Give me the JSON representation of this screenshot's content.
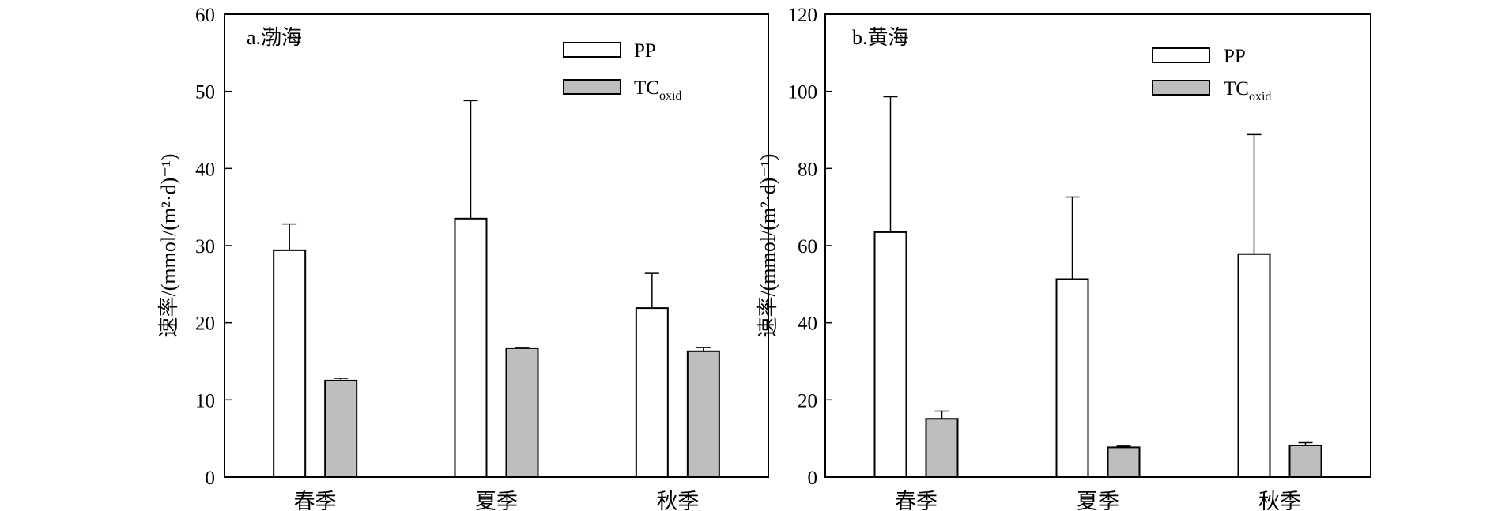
{
  "chart_data": [
    {
      "type": "bar",
      "title": "a.渤海",
      "ylabel": "速率/(mmol/(m²·d)⁻¹)",
      "ylim": [
        0,
        60
      ],
      "yticks": [
        0,
        10,
        20,
        30,
        40,
        50,
        60
      ],
      "categories": [
        "春季",
        "夏季",
        "秋季"
      ],
      "legend_position": "top-right",
      "series": [
        {
          "name": "PP",
          "name_base": "PP",
          "name_sub": "",
          "color": "#ffffff",
          "values": [
            29.4,
            33.5,
            21.9
          ],
          "error_upper": [
            32.8,
            48.8,
            26.4
          ]
        },
        {
          "name": "TCoxid",
          "name_base": "TC",
          "name_sub": "oxid",
          "color": "#bebebe",
          "values": [
            12.5,
            16.7,
            16.3
          ],
          "error_upper": [
            12.8,
            16.8,
            16.8
          ]
        }
      ]
    },
    {
      "type": "bar",
      "title": "b.黄海",
      "ylabel": "速率/(mmol/(m²·d)⁻¹)",
      "ylim": [
        0,
        120
      ],
      "yticks": [
        0,
        20,
        40,
        60,
        80,
        100,
        120
      ],
      "categories": [
        "春季",
        "夏季",
        "秋季"
      ],
      "legend_position": "top-right",
      "series": [
        {
          "name": "PP",
          "name_base": "PP",
          "name_sub": "",
          "color": "#ffffff",
          "values": [
            63.5,
            51.3,
            57.8
          ],
          "error_upper": [
            98.6,
            72.6,
            88.8
          ]
        },
        {
          "name": "TCoxid",
          "name_base": "TC",
          "name_sub": "oxid",
          "color": "#bebebe",
          "values": [
            15.1,
            7.7,
            8.2
          ],
          "error_upper": [
            17.1,
            8.0,
            8.9
          ]
        }
      ]
    }
  ]
}
